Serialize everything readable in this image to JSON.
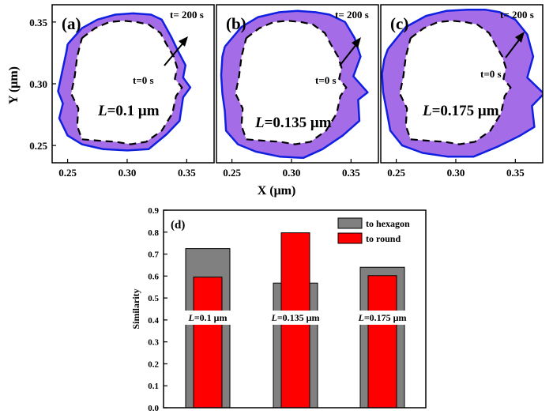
{
  "chart_data": [
    {
      "type": "line",
      "panel": "(a)",
      "title": "(a)",
      "xlabel": "X (μm)",
      "ylabel": "Y (μm)",
      "xlim": [
        0.237,
        0.373
      ],
      "ylim": [
        0.236,
        0.364
      ],
      "xticks": [
        "0.25",
        "0.30",
        "0.35"
      ],
      "yticks": [
        "0.25",
        "0.30",
        "0.35"
      ],
      "label_L": "L",
      "label_rest": "=0.1 μm",
      "annot_start": "t=0 s",
      "annot_end": "t= 200 s",
      "series": [
        {
          "name": "t=0 s",
          "style": "dashed",
          "x": [
            0.262,
            0.273,
            0.285,
            0.297,
            0.308,
            0.318,
            0.328,
            0.333,
            0.339,
            0.342,
            0.34,
            0.346,
            0.341,
            0.338,
            0.329,
            0.316,
            0.303,
            0.29,
            0.275,
            0.262,
            0.258,
            0.259,
            0.253,
            0.256,
            0.258,
            0.262
          ],
          "y": [
            0.337,
            0.345,
            0.35,
            0.351,
            0.35,
            0.348,
            0.341,
            0.332,
            0.322,
            0.313,
            0.304,
            0.297,
            0.29,
            0.276,
            0.262,
            0.253,
            0.251,
            0.253,
            0.254,
            0.255,
            0.266,
            0.28,
            0.292,
            0.306,
            0.322,
            0.337
          ]
        },
        {
          "name": "t=200 s",
          "style": "solid",
          "x": [
            0.25,
            0.262,
            0.275,
            0.29,
            0.305,
            0.32,
            0.329,
            0.337,
            0.343,
            0.349,
            0.347,
            0.353,
            0.347,
            0.344,
            0.333,
            0.318,
            0.3,
            0.28,
            0.262,
            0.25,
            0.243,
            0.246,
            0.242,
            0.245,
            0.249,
            0.25
          ],
          "y": [
            0.332,
            0.345,
            0.352,
            0.356,
            0.357,
            0.356,
            0.352,
            0.338,
            0.326,
            0.315,
            0.305,
            0.297,
            0.289,
            0.27,
            0.259,
            0.247,
            0.246,
            0.247,
            0.251,
            0.258,
            0.272,
            0.284,
            0.294,
            0.308,
            0.326,
            0.332
          ]
        }
      ]
    },
    {
      "type": "line",
      "panel": "(b)",
      "title": "(b)",
      "xlabel": "X (μm)",
      "xlim": [
        0.237,
        0.373
      ],
      "ylim": [
        0.236,
        0.364
      ],
      "xticks": [
        "0.25",
        "0.30",
        "0.35"
      ],
      "label_L": "L",
      "label_rest": "=0.135 μm",
      "annot_start": "t=0 s",
      "annot_end": "t= 200 s",
      "series": [
        {
          "name": "t=0 s",
          "style": "dashed",
          "x": [
            0.262,
            0.273,
            0.285,
            0.297,
            0.308,
            0.318,
            0.328,
            0.333,
            0.339,
            0.342,
            0.34,
            0.346,
            0.341,
            0.338,
            0.329,
            0.316,
            0.303,
            0.29,
            0.275,
            0.262,
            0.258,
            0.259,
            0.253,
            0.256,
            0.258,
            0.262
          ],
          "y": [
            0.337,
            0.345,
            0.35,
            0.351,
            0.35,
            0.348,
            0.341,
            0.332,
            0.322,
            0.313,
            0.304,
            0.297,
            0.29,
            0.276,
            0.262,
            0.253,
            0.251,
            0.253,
            0.254,
            0.255,
            0.266,
            0.28,
            0.292,
            0.306,
            0.322,
            0.337
          ]
        },
        {
          "name": "t=200 s",
          "style": "solid",
          "x": [
            0.244,
            0.258,
            0.272,
            0.29,
            0.305,
            0.32,
            0.332,
            0.345,
            0.353,
            0.358,
            0.352,
            0.364,
            0.356,
            0.357,
            0.343,
            0.326,
            0.31,
            0.29,
            0.27,
            0.255,
            0.245,
            0.244,
            0.242,
            0.241,
            0.242,
            0.244
          ],
          "y": [
            0.33,
            0.346,
            0.354,
            0.358,
            0.359,
            0.358,
            0.356,
            0.35,
            0.337,
            0.322,
            0.306,
            0.293,
            0.287,
            0.27,
            0.258,
            0.247,
            0.24,
            0.241,
            0.245,
            0.251,
            0.262,
            0.278,
            0.292,
            0.307,
            0.322,
            0.33
          ]
        }
      ]
    },
    {
      "type": "line",
      "panel": "(c)",
      "title": "(c)",
      "xlabel": "X (μm)",
      "xlim": [
        0.237,
        0.373
      ],
      "ylim": [
        0.236,
        0.364
      ],
      "xticks": [
        "0.25",
        "0.30",
        "0.35"
      ],
      "label_L": "L",
      "label_rest": "=0.175 μm",
      "annot_start": "t=0 s",
      "annot_end": "t= 200 s",
      "series": [
        {
          "name": "t=0 s",
          "style": "dashed",
          "x": [
            0.262,
            0.273,
            0.285,
            0.297,
            0.308,
            0.318,
            0.328,
            0.333,
            0.339,
            0.342,
            0.34,
            0.346,
            0.341,
            0.338,
            0.329,
            0.316,
            0.303,
            0.29,
            0.275,
            0.262,
            0.258,
            0.259,
            0.253,
            0.256,
            0.258,
            0.262
          ],
          "y": [
            0.337,
            0.345,
            0.35,
            0.351,
            0.35,
            0.348,
            0.341,
            0.332,
            0.322,
            0.313,
            0.304,
            0.297,
            0.29,
            0.276,
            0.262,
            0.253,
            0.251,
            0.253,
            0.254,
            0.255,
            0.266,
            0.28,
            0.292,
            0.306,
            0.322,
            0.337
          ]
        },
        {
          "name": "t=200 s",
          "style": "solid",
          "x": [
            0.243,
            0.258,
            0.275,
            0.292,
            0.31,
            0.325,
            0.337,
            0.35,
            0.36,
            0.365,
            0.36,
            0.374,
            0.364,
            0.366,
            0.354,
            0.335,
            0.315,
            0.293,
            0.272,
            0.255,
            0.245,
            0.242,
            0.239,
            0.238,
            0.24,
            0.243
          ],
          "y": [
            0.328,
            0.346,
            0.355,
            0.359,
            0.36,
            0.36,
            0.358,
            0.352,
            0.34,
            0.322,
            0.305,
            0.292,
            0.282,
            0.265,
            0.258,
            0.249,
            0.241,
            0.241,
            0.244,
            0.25,
            0.262,
            0.278,
            0.293,
            0.308,
            0.32,
            0.328
          ]
        }
      ]
    },
    {
      "type": "bar",
      "panel": "(d)",
      "title": "(d)",
      "ylabel": "Similarity",
      "ylim": [
        0.0,
        0.9
      ],
      "yticks": [
        "0.0",
        "0.1",
        "0.2",
        "0.3",
        "0.4",
        "0.5",
        "0.6",
        "0.7",
        "0.8",
        "0.9"
      ],
      "categories": [
        "L=0.1 μm",
        "L=0.135 μm",
        "L=0.175 μm"
      ],
      "category_L": [
        "L",
        "L",
        "L"
      ],
      "category_rest": [
        "=0.1 μm",
        "=0.135 μm",
        "=0.175 μm"
      ],
      "legend": "top-right",
      "series": [
        {
          "name": "to hexagon",
          "color": "#808080",
          "values": [
            0.725,
            0.568,
            0.64
          ]
        },
        {
          "name": "to round",
          "color": "#ff0000",
          "values": [
            0.595,
            0.797,
            0.602
          ]
        }
      ]
    }
  ],
  "colors": {
    "fill": "#a56ce8",
    "outline": "#1020e0",
    "hexagon": "#808080",
    "round": "#ff0000"
  }
}
